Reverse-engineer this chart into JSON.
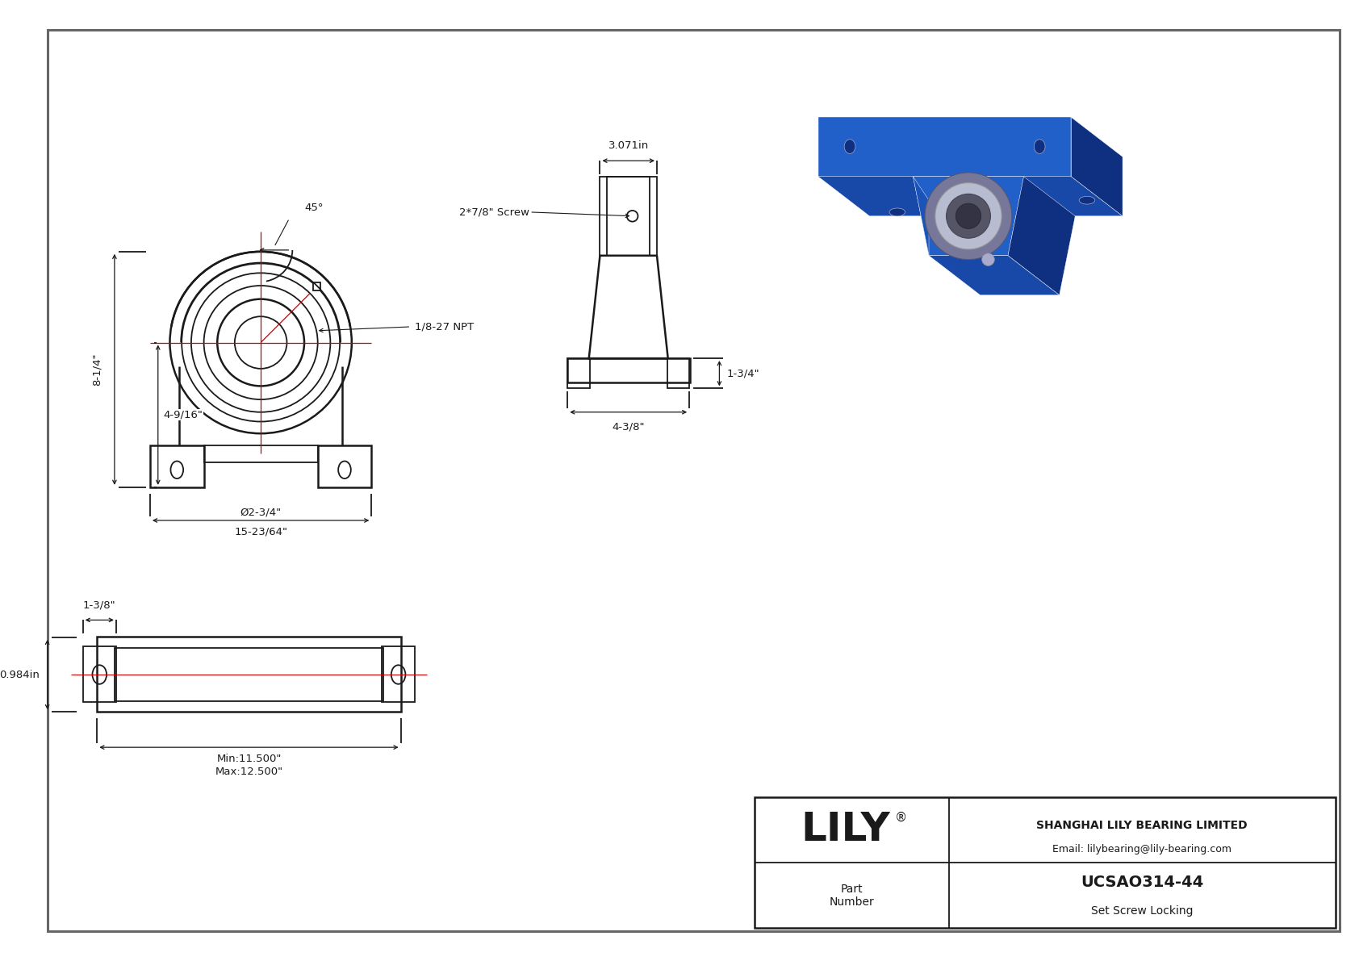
{
  "bg_color": "#ffffff",
  "line_color": "#1a1a1a",
  "dim_color": "#1a1a1a",
  "red_color": "#cc0000",
  "blue_color": "#1f4e9e",
  "title": "UCSAO314-44",
  "subtitle": "Set Screw Locking",
  "company": "SHANGHAI LILY BEARING LIMITED",
  "email": "Email: lilybearing@lily-bearing.com",
  "part_label": "Part\nNumber",
  "logo": "LILY",
  "dimensions": {
    "front_total_height": "8-1/4\"",
    "front_base_height": "4-9/16\"",
    "front_total_width": "15-23/64\"",
    "bore_diameter": "Ø2-3/4\"",
    "side_width": "4-3/8\"",
    "side_height": "1-3/4\"",
    "side_top": "3.071in",
    "screw_label": "2*7/8\" Screw",
    "npt_label": "1/8-27 NPT",
    "angle_label": "45°",
    "bottom_min": "Min:11.500\"",
    "bottom_max": "Max:12.500\"",
    "bottom_side": "1-3/8\"",
    "bottom_height": "0.984in"
  }
}
